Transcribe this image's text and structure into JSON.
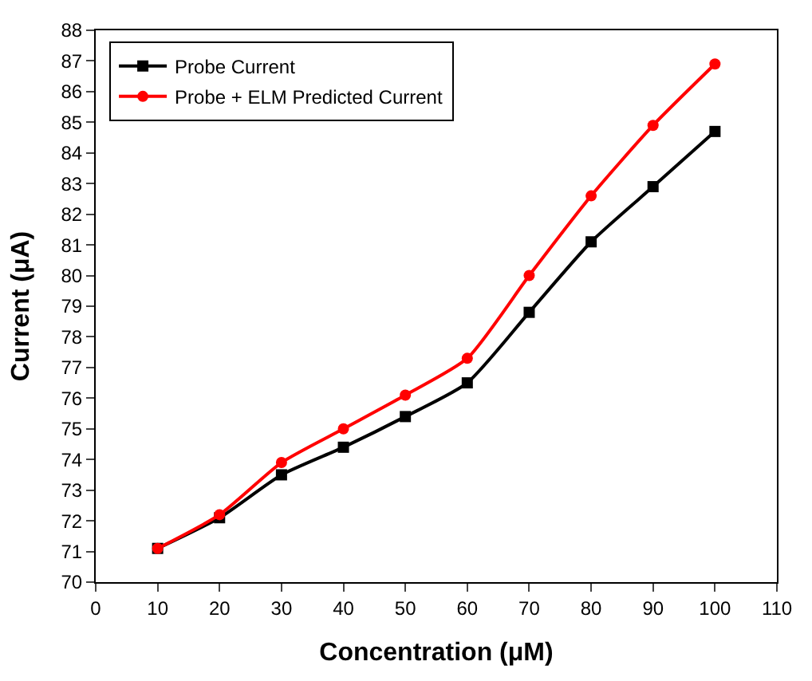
{
  "chart_data": {
    "type": "line",
    "xlabel": "Concentration (μM)",
    "ylabel": "Current (μA)",
    "x": [
      10,
      20,
      30,
      40,
      50,
      60,
      70,
      80,
      90,
      100
    ],
    "series": [
      {
        "name": "Probe Current",
        "color": "#000000",
        "marker": "square",
        "values": [
          71.1,
          72.1,
          73.5,
          74.4,
          75.4,
          76.5,
          78.8,
          81.1,
          82.9,
          84.7
        ]
      },
      {
        "name": "Probe + ELM Predicted Current",
        "color": "#ff0000",
        "marker": "circle",
        "values": [
          71.1,
          72.2,
          73.9,
          75.0,
          76.1,
          77.3,
          80.0,
          82.6,
          84.9,
          86.9
        ]
      }
    ],
    "xlim": [
      0,
      110
    ],
    "xticks": [
      0,
      10,
      20,
      30,
      40,
      50,
      60,
      70,
      80,
      90,
      100,
      110
    ],
    "ylim": [
      70,
      88
    ],
    "yticks": [
      70,
      71,
      72,
      73,
      74,
      75,
      76,
      77,
      78,
      79,
      80,
      81,
      82,
      83,
      84,
      85,
      86,
      87,
      88
    ],
    "legend": "top left",
    "line_style": "solid"
  }
}
